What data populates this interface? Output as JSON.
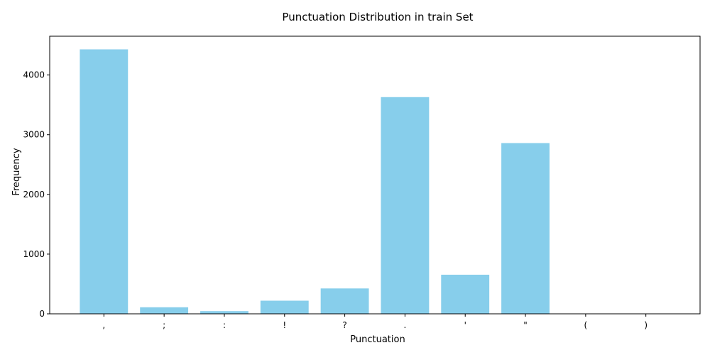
{
  "chart_data": {
    "type": "bar",
    "title": "Punctuation Distribution in train Set",
    "xlabel": "Punctuation",
    "ylabel": "Frequency",
    "categories": [
      ",",
      ";",
      ":",
      "!",
      "?",
      ".",
      "'",
      "\"",
      "(",
      ")"
    ],
    "values": [
      4430,
      110,
      45,
      220,
      425,
      3630,
      655,
      2860,
      5,
      5
    ],
    "ylim": [
      0,
      4650
    ],
    "yticks": [
      0,
      1000,
      2000,
      3000,
      4000
    ],
    "ytick_labels": [
      "0",
      "1000",
      "2000",
      "3000",
      "4000"
    ],
    "grid": false,
    "bar_color": "#87ceeb"
  }
}
